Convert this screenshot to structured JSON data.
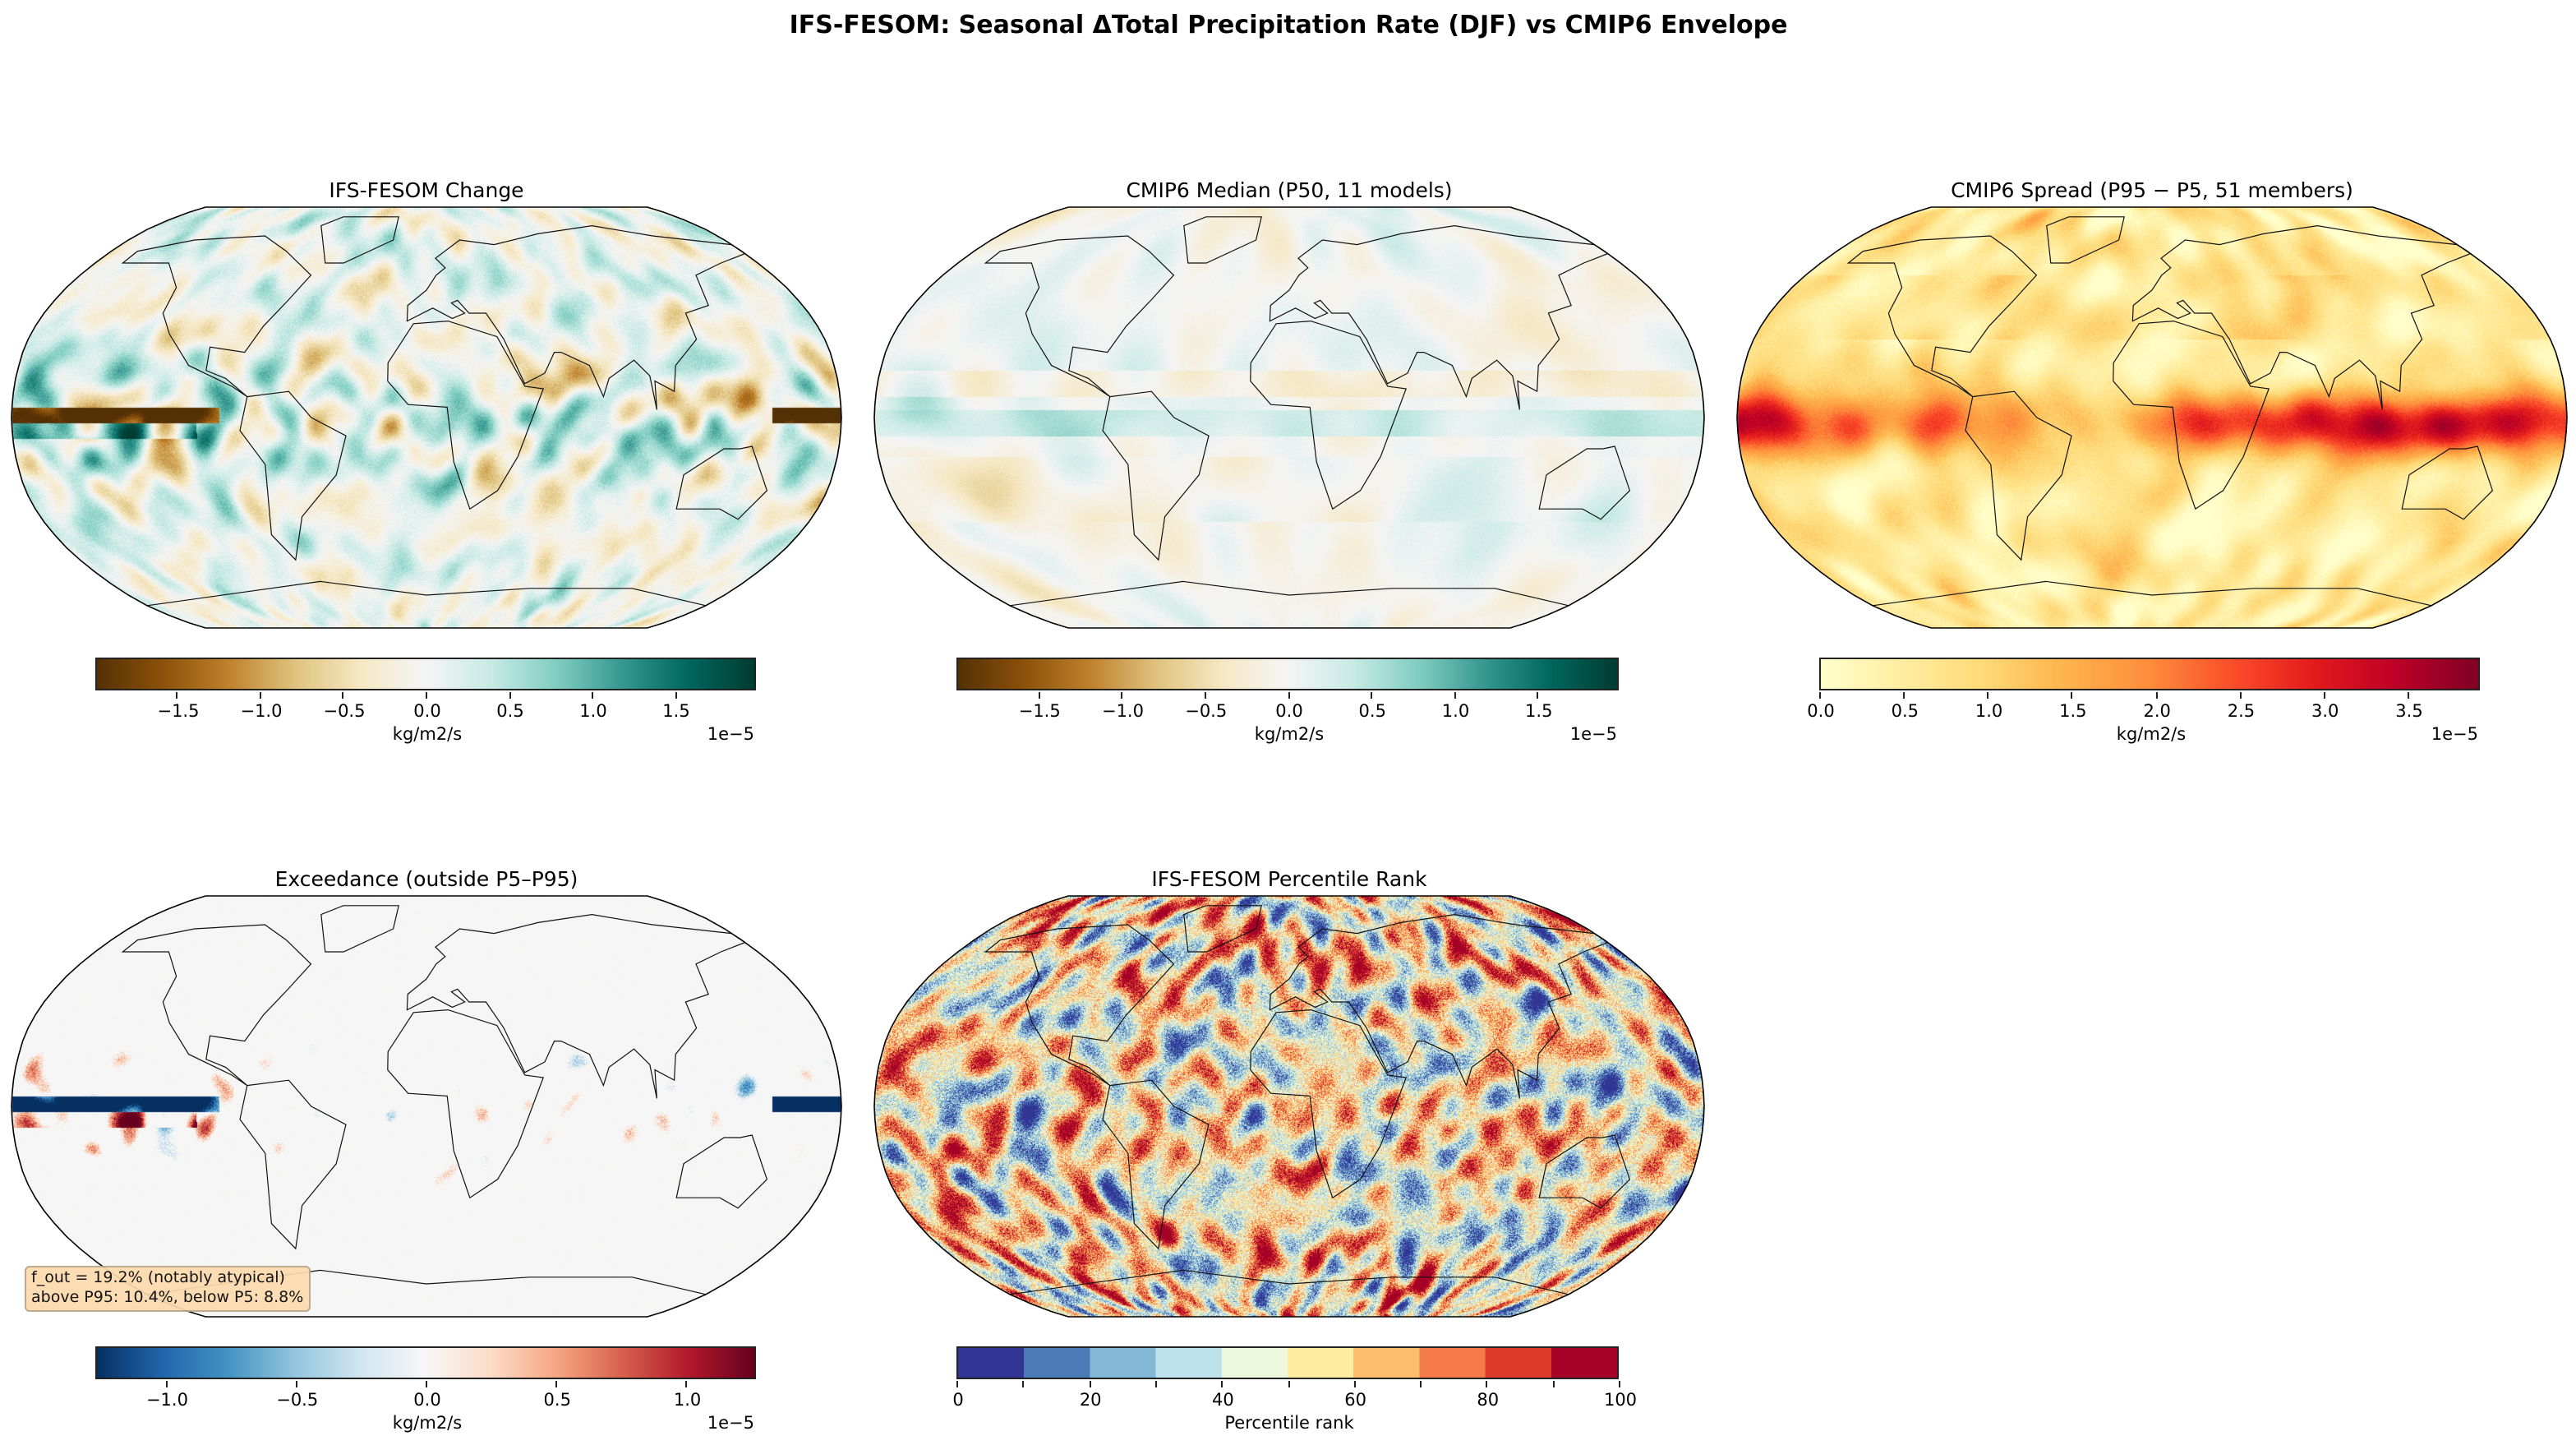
{
  "title": "IFS-FESOM: Seasonal ΔTotal Precipitation Rate (DJF) vs CMIP6 Envelope",
  "chart_data": [
    {
      "type": "heatmap",
      "title": "IFS-FESOM Change",
      "projection": "Robinson",
      "colormap": "BrBG",
      "colors": [
        "#543005",
        "#8c510a",
        "#bf812d",
        "#dfc27d",
        "#f6e8c3",
        "#f5f5f5",
        "#c7eae5",
        "#80cdc1",
        "#35978f",
        "#01665e",
        "#003c30"
      ],
      "clim": [
        -1.99,
        1.99
      ],
      "ticks": [
        -1.5,
        -1.0,
        -0.5,
        0.0,
        0.5,
        1.0,
        1.5
      ],
      "tick_labels": [
        "−1.5",
        "−1.0",
        "−0.5",
        "0.0",
        "0.5",
        "1.0",
        "1.5"
      ],
      "colorbar_label": "kg/m2/s",
      "colorbar_exponent": "1e−5"
    },
    {
      "type": "heatmap",
      "title": "CMIP6 Median (P50, 11 models)",
      "projection": "Robinson",
      "colormap": "BrBG",
      "colors": [
        "#543005",
        "#8c510a",
        "#bf812d",
        "#dfc27d",
        "#f6e8c3",
        "#f5f5f5",
        "#c7eae5",
        "#80cdc1",
        "#35978f",
        "#01665e",
        "#003c30"
      ],
      "clim": [
        -1.99,
        1.99
      ],
      "ticks": [
        -1.5,
        -1.0,
        -0.5,
        0.0,
        0.5,
        1.0,
        1.5
      ],
      "tick_labels": [
        "−1.5",
        "−1.0",
        "−0.5",
        "0.0",
        "0.5",
        "1.0",
        "1.5"
      ],
      "colorbar_label": "kg/m2/s",
      "colorbar_exponent": "1e−5"
    },
    {
      "type": "heatmap",
      "title": "CMIP6 Spread (P95 − P5, 51 members)",
      "projection": "Robinson",
      "colormap": "YlOrRd",
      "colors": [
        "#ffffcc",
        "#ffeda0",
        "#fed976",
        "#feb24c",
        "#fd8d3c",
        "#fc4e2a",
        "#e31a1c",
        "#bd0026",
        "#800026"
      ],
      "clim": [
        0,
        3.93
      ],
      "ticks": [
        0.0,
        0.5,
        1.0,
        1.5,
        2.0,
        2.5,
        3.0,
        3.5
      ],
      "tick_labels": [
        "0.0",
        "0.5",
        "1.0",
        "1.5",
        "2.0",
        "2.5",
        "3.0",
        "3.5"
      ],
      "colorbar_label": "kg/m2/s",
      "colorbar_exponent": "1e−5"
    },
    {
      "type": "heatmap",
      "title": "Exceedance (outside P5–P95)",
      "projection": "Robinson",
      "colormap": "RdBu_r",
      "colors": [
        "#053061",
        "#2166ac",
        "#4393c3",
        "#92c5de",
        "#d1e5f0",
        "#f7f7f7",
        "#fddbc7",
        "#f4a582",
        "#d6604d",
        "#b2182b",
        "#67001f"
      ],
      "clim": [
        -1.27,
        1.27
      ],
      "ticks": [
        -1.0,
        -0.5,
        0.0,
        0.5,
        1.0
      ],
      "tick_labels": [
        "−1.0",
        "−0.5",
        "0.0",
        "0.5",
        "1.0"
      ],
      "colorbar_label": "kg/m2/s",
      "colorbar_exponent": "1e−5",
      "annotation": {
        "line1": "f_out = 19.2% (notably atypical)",
        "line2": "above P95: 10.4%, below P5: 8.8%",
        "f_out": 19.2,
        "above_p95": 10.4,
        "below_p5": 8.8
      }
    },
    {
      "type": "heatmap",
      "title": "IFS-FESOM Percentile Rank",
      "projection": "Robinson",
      "colormap": "RdYlBu_r (10 discrete levels)",
      "colors": [
        "#313695",
        "#4a7bb7",
        "#82b7d6",
        "#bee2ec",
        "#eef8df",
        "#feeda1",
        "#fdbf6f",
        "#f57b4a",
        "#dc3b2c",
        "#a50026"
      ],
      "clim": [
        0,
        100
      ],
      "ticks": [
        0,
        20,
        40,
        60,
        80,
        100
      ],
      "tick_labels": [
        "0",
        "20",
        "40",
        "60",
        "80",
        "100"
      ],
      "colorbar_label": "Percentile rank",
      "colorbar_exponent": ""
    }
  ]
}
